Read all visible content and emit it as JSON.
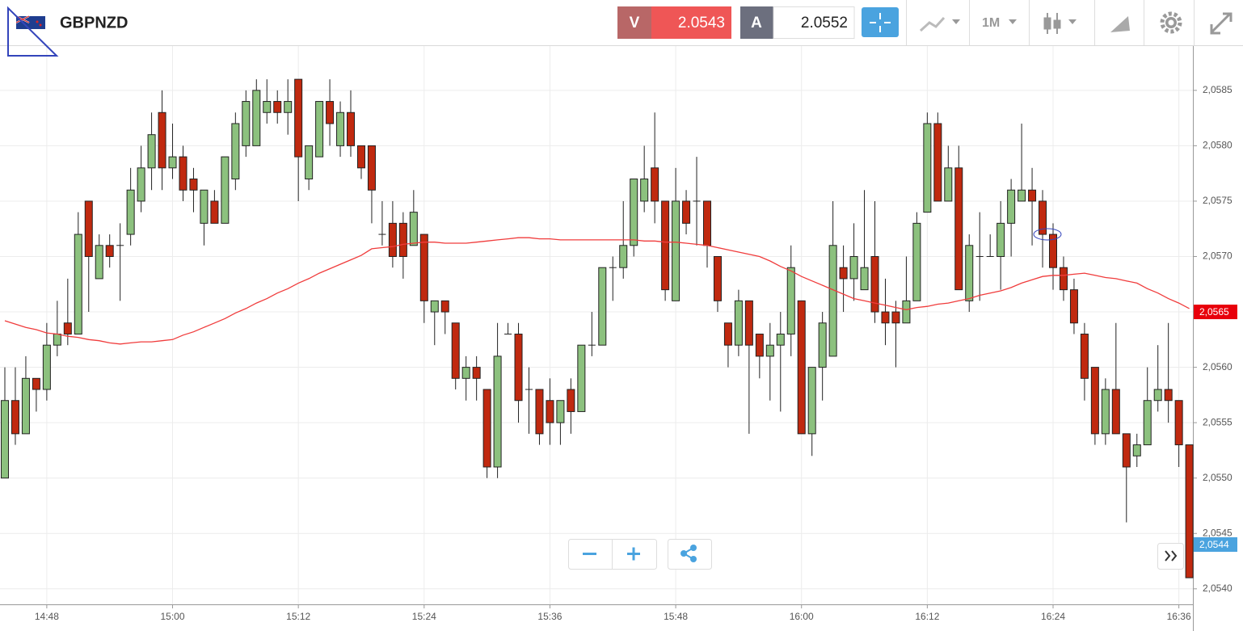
{
  "header": {
    "symbol": "GBPNZD",
    "sell_label": "V",
    "sell_price": 2.0543,
    "buy_label": "A",
    "buy_price": 2.0552,
    "timeframe": "1M"
  },
  "chart_data": {
    "type": "candlestick",
    "categories": [
      null,
      null,
      null,
      null,
      "14:48",
      null,
      null,
      null,
      null,
      null,
      null,
      null,
      null,
      null,
      null,
      null,
      "15:00",
      null,
      null,
      null,
      null,
      null,
      null,
      null,
      null,
      null,
      null,
      null,
      "15:12",
      null,
      null,
      null,
      null,
      null,
      null,
      null,
      null,
      null,
      null,
      null,
      "15:24",
      null,
      null,
      null,
      null,
      null,
      null,
      null,
      null,
      null,
      null,
      null,
      "15:36",
      null,
      null,
      null,
      null,
      null,
      null,
      null,
      null,
      null,
      null,
      null,
      "15:48",
      null,
      null,
      null,
      null,
      null,
      null,
      null,
      null,
      null,
      null,
      null,
      "16:00",
      null,
      null,
      null,
      null,
      null,
      null,
      null,
      null,
      null,
      null,
      null,
      "16:12",
      null,
      null,
      null,
      null,
      null,
      null,
      null,
      null,
      null,
      null,
      null,
      "16:24",
      null,
      null,
      null,
      null,
      null,
      null,
      null,
      null,
      null,
      null,
      null,
      "16:36",
      null
    ],
    "open": [
      2.055,
      2.0557,
      2.0554,
      2.0559,
      2.0558,
      2.0562,
      2.0564,
      2.0563,
      2.0575,
      2.0568,
      2.0571,
      2.0571,
      2.0572,
      2.0575,
      2.0578,
      2.0583,
      2.0578,
      2.0579,
      2.0577,
      2.0573,
      2.0575,
      2.0573,
      2.0577,
      2.058,
      2.058,
      2.0583,
      2.0584,
      2.0583,
      2.0586,
      2.0577,
      2.0579,
      2.0584,
      2.058,
      2.0583,
      2.058,
      2.058,
      2.0572,
      2.0573,
      2.0573,
      2.0571,
      2.0572,
      2.0565,
      2.0566,
      2.0564,
      2.0559,
      2.056,
      2.0558,
      2.0551,
      2.0563,
      2.0563,
      2.0558,
      2.0558,
      2.0557,
      2.0555,
      2.0558,
      2.0556,
      2.0562,
      2.0562,
      2.0569,
      2.0569,
      2.0571,
      2.0575,
      2.0578,
      2.0575,
      2.0566,
      2.0575,
      2.0575,
      2.0575,
      2.057,
      2.0564,
      2.0562,
      2.0566,
      2.0563,
      2.0561,
      2.0562,
      2.0563,
      2.0566,
      2.0554,
      2.056,
      2.0561,
      2.0569,
      2.0568,
      2.0567,
      2.057,
      2.0565,
      2.0565,
      2.0564,
      2.0566,
      2.0574,
      2.0582,
      2.0575,
      2.0578,
      2.0566,
      2.057,
      2.057,
      2.057,
      2.0573,
      2.0575,
      2.0576,
      2.0575,
      2.0572,
      2.0569,
      2.0567,
      2.0563,
      2.056,
      2.0554,
      2.0558,
      2.0554,
      2.0552,
      2.0553,
      2.0557,
      2.0558,
      2.0557,
      2.0553
    ],
    "high": [
      2.056,
      2.056,
      2.0561,
      2.0559,
      2.0564,
      2.0566,
      2.0568,
      2.0574,
      2.0575,
      2.0572,
      2.0572,
      2.0573,
      2.0578,
      2.058,
      2.0583,
      2.0585,
      2.0582,
      2.058,
      2.0578,
      2.0576,
      2.0576,
      2.0579,
      2.0583,
      2.0585,
      2.0586,
      2.0586,
      2.0585,
      2.0586,
      2.0586,
      2.058,
      2.0584,
      2.0586,
      2.0584,
      2.0585,
      2.058,
      2.058,
      2.0575,
      2.0575,
      2.0574,
      2.0576,
      2.0572,
      2.0566,
      2.0566,
      2.0564,
      2.0561,
      2.0561,
      2.0558,
      2.0564,
      2.0564,
      2.0564,
      2.056,
      2.0558,
      2.0559,
      2.0557,
      2.0559,
      2.0562,
      2.0565,
      2.0569,
      2.057,
      2.0575,
      2.0577,
      2.058,
      2.0583,
      2.0575,
      2.0578,
      2.0576,
      2.0579,
      2.0575,
      2.057,
      2.0564,
      2.0567,
      2.0566,
      2.0563,
      2.0564,
      2.0565,
      2.0571,
      2.0566,
      2.056,
      2.0565,
      2.0575,
      2.0571,
      2.0573,
      2.0576,
      2.0575,
      2.0568,
      2.0566,
      2.057,
      2.0574,
      2.0583,
      2.0583,
      2.058,
      2.058,
      2.0572,
      2.0574,
      2.0572,
      2.0575,
      2.0577,
      2.0582,
      2.0578,
      2.0576,
      2.0573,
      2.057,
      2.0568,
      2.0564,
      2.056,
      2.0559,
      2.0564,
      2.0554,
      2.0554,
      2.056,
      2.0562,
      2.0564,
      2.0557,
      2.0553
    ],
    "low": [
      2.055,
      2.0553,
      2.0554,
      2.0556,
      2.0557,
      2.0561,
      2.0562,
      2.0563,
      2.0565,
      2.0568,
      2.0569,
      2.0566,
      2.0571,
      2.0574,
      2.0576,
      2.0576,
      2.0577,
      2.0575,
      2.0574,
      2.0571,
      2.0573,
      2.0573,
      2.0576,
      2.0579,
      2.058,
      2.0582,
      2.0582,
      2.0581,
      2.0575,
      2.0576,
      2.0579,
      2.058,
      2.0579,
      2.0579,
      2.0577,
      2.0573,
      2.0571,
      2.0569,
      2.0568,
      2.0571,
      2.0564,
      2.0562,
      2.0563,
      2.0558,
      2.0557,
      2.0557,
      2.055,
      2.055,
      2.0563,
      2.0555,
      2.0554,
      2.0553,
      2.0553,
      2.0553,
      2.0554,
      2.0556,
      2.0561,
      2.0562,
      2.0566,
      2.0568,
      2.057,
      2.0574,
      2.0573,
      2.0566,
      2.0566,
      2.0572,
      2.0571,
      2.0569,
      2.0565,
      2.056,
      2.0561,
      2.0554,
      2.0559,
      2.0557,
      2.0556,
      2.0561,
      2.0554,
      2.0552,
      2.0557,
      2.0561,
      2.0565,
      2.0566,
      2.0567,
      2.0564,
      2.0562,
      2.056,
      2.0564,
      2.0566,
      2.0574,
      2.0575,
      2.0575,
      2.0567,
      2.0565,
      2.0566,
      2.057,
      2.0567,
      2.057,
      2.0575,
      2.0571,
      2.0569,
      2.0567,
      2.0566,
      2.0563,
      2.0557,
      2.0553,
      2.0553,
      2.0554,
      2.0546,
      2.0551,
      2.0553,
      2.0556,
      2.0555,
      2.0551,
      2.0541
    ],
    "close": [
      2.0557,
      2.0554,
      2.0559,
      2.0558,
      2.0562,
      2.0563,
      2.0563,
      2.0572,
      2.057,
      2.0571,
      2.057,
      2.0571,
      2.0576,
      2.0578,
      2.0581,
      2.0578,
      2.0579,
      2.0576,
      2.0576,
      2.0576,
      2.0573,
      2.0579,
      2.0582,
      2.0584,
      2.0585,
      2.0584,
      2.0583,
      2.0584,
      2.0579,
      2.058,
      2.0584,
      2.0582,
      2.0583,
      2.058,
      2.0578,
      2.0576,
      2.0572,
      2.057,
      2.057,
      2.0574,
      2.0566,
      2.0566,
      2.0565,
      2.0559,
      2.056,
      2.0559,
      2.0551,
      2.0561,
      2.0563,
      2.0557,
      2.0558,
      2.0554,
      2.0555,
      2.0557,
      2.0556,
      2.0562,
      2.0562,
      2.0569,
      2.0569,
      2.0571,
      2.0577,
      2.0577,
      2.0575,
      2.0567,
      2.0575,
      2.0573,
      2.0575,
      2.0571,
      2.0566,
      2.0562,
      2.0566,
      2.0562,
      2.0561,
      2.0562,
      2.0563,
      2.0569,
      2.0554,
      2.056,
      2.0564,
      2.0571,
      2.0568,
      2.057,
      2.0569,
      2.0565,
      2.0564,
      2.0564,
      2.0566,
      2.0573,
      2.0582,
      2.0575,
      2.0578,
      2.0567,
      2.0571,
      2.057,
      2.057,
      2.0573,
      2.0576,
      2.0576,
      2.0575,
      2.0572,
      2.0569,
      2.0567,
      2.0564,
      2.0559,
      2.0554,
      2.0558,
      2.0554,
      2.0551,
      2.0553,
      2.0557,
      2.0558,
      2.0557,
      2.0553,
      2.0541
    ],
    "up_color": "#8cc17e",
    "down_color": "#c0290f",
    "ma": {
      "color": "#f03c3c",
      "values": [
        2.05642,
        2.05639,
        2.05636,
        2.05634,
        2.05631,
        2.0563,
        2.05628,
        2.05627,
        2.05625,
        2.05624,
        2.05622,
        2.05621,
        2.05622,
        2.05623,
        2.05623,
        2.05624,
        2.05625,
        2.05629,
        2.05632,
        2.05636,
        2.0564,
        2.05644,
        2.05649,
        2.05653,
        2.05658,
        2.05662,
        2.05667,
        2.05671,
        2.05676,
        2.0568,
        2.05685,
        2.05689,
        2.05693,
        2.05697,
        2.05701,
        2.05707,
        2.05708,
        2.05709,
        2.05711,
        2.05712,
        2.05713,
        2.05713,
        2.05712,
        2.05712,
        2.05712,
        2.05713,
        2.05714,
        2.05715,
        2.05716,
        2.05717,
        2.05717,
        2.05716,
        2.05716,
        2.05715,
        2.05715,
        2.05715,
        2.05715,
        2.05715,
        2.05715,
        2.05715,
        2.05715,
        2.05714,
        2.05714,
        2.05713,
        2.05713,
        2.05712,
        2.05711,
        2.0571,
        2.05708,
        2.05706,
        2.05704,
        2.05702,
        2.057,
        2.05696,
        2.05691,
        2.05687,
        2.05682,
        2.05678,
        2.05674,
        2.0567,
        2.05666,
        2.05662,
        2.0566,
        2.05658,
        2.05656,
        2.05654,
        2.05652,
        2.05654,
        2.05655,
        2.05657,
        2.05658,
        2.0566,
        2.05662,
        2.05665,
        2.05667,
        2.05669,
        2.05672,
        2.05676,
        2.05679,
        2.05682,
        2.05683,
        2.05683,
        2.05684,
        2.05685,
        2.05683,
        2.05681,
        2.0568,
        2.05678,
        2.05676,
        2.05671,
        2.05667,
        2.05662,
        2.05658,
        2.05653
      ]
    },
    "ylim": [
      2.05386,
      2.0589
    ],
    "yticks": [
      {
        "value": 2.054,
        "label": "2,0540"
      },
      {
        "value": 2.0545,
        "label": "2,0545"
      },
      {
        "value": 2.055,
        "label": "2,0550"
      },
      {
        "value": 2.0555,
        "label": "2,0555"
      },
      {
        "value": 2.056,
        "label": "2,0560"
      },
      {
        "value": 2.0565,
        "label": "2,0565"
      },
      {
        "value": 2.057,
        "label": "2,0570"
      },
      {
        "value": 2.0575,
        "label": "2,0575"
      },
      {
        "value": 2.058,
        "label": "2,0580"
      },
      {
        "value": 2.0585,
        "label": "2,0585"
      }
    ],
    "grid": true,
    "price_markers": [
      {
        "value": 2.0565,
        "label": "2,0565",
        "color": "#e8000b"
      },
      {
        "value": 2.0544,
        "label": "2,0544",
        "color": "#4aa3df"
      }
    ]
  }
}
